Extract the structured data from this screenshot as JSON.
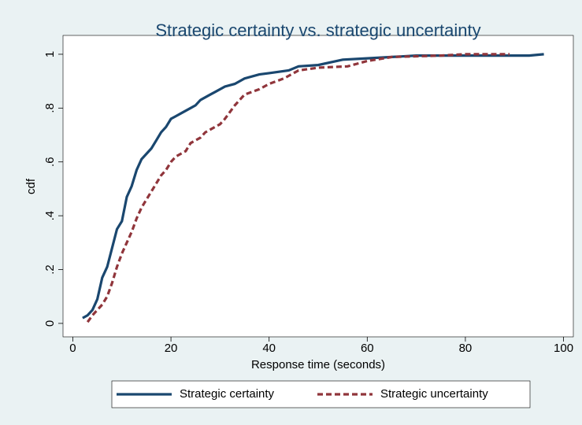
{
  "chart_data": {
    "type": "line",
    "title": "Strategic certainty vs. strategic uncertainty",
    "x_label": "Response time (seconds)",
    "y_label": "cdf",
    "xlim": [
      -2,
      102
    ],
    "ylim": [
      -0.05,
      1.07
    ],
    "xticks": [
      0,
      20,
      40,
      60,
      80,
      100
    ],
    "yticks": [
      0,
      {
        "value": 0.2,
        "label": ".2"
      },
      {
        "value": 0.4,
        "label": ".4"
      },
      {
        "value": 0.6,
        "label": ".6"
      },
      {
        "value": 0.8,
        "label": ".8"
      },
      1
    ],
    "grid": false,
    "legend": "bottom",
    "series": [
      {
        "name": "Strategic certainty",
        "color": "#1a476f",
        "dash": "solid",
        "x": [
          2,
          3,
          4,
          5,
          6,
          7,
          8,
          9,
          10,
          11,
          12,
          13,
          14,
          15,
          16,
          17,
          18,
          19,
          20,
          21,
          22,
          24,
          25,
          26,
          28,
          29,
          31,
          33,
          35,
          38,
          40,
          44,
          46,
          50,
          55,
          60,
          65,
          70,
          93,
          96
        ],
        "values": [
          0.02,
          0.03,
          0.05,
          0.09,
          0.17,
          0.21,
          0.28,
          0.35,
          0.38,
          0.47,
          0.51,
          0.57,
          0.61,
          0.63,
          0.65,
          0.68,
          0.71,
          0.73,
          0.76,
          0.77,
          0.78,
          0.8,
          0.81,
          0.83,
          0.85,
          0.86,
          0.88,
          0.89,
          0.91,
          0.925,
          0.93,
          0.94,
          0.955,
          0.96,
          0.98,
          0.985,
          0.99,
          0.995,
          0.995,
          1
        ]
      },
      {
        "name": "Strategic uncertainty",
        "color": "#90353b",
        "dash": "dashed",
        "x": [
          3,
          4,
          5,
          6,
          7,
          8,
          9,
          10,
          11,
          12,
          13,
          14,
          15,
          16,
          17,
          18,
          19,
          20,
          21,
          23,
          24,
          25,
          26,
          27,
          28,
          30,
          31,
          33,
          35,
          38,
          40,
          43,
          46,
          50,
          56,
          60,
          65,
          75,
          80,
          89
        ],
        "values": [
          0.005,
          0.03,
          0.05,
          0.07,
          0.1,
          0.15,
          0.21,
          0.26,
          0.3,
          0.34,
          0.39,
          0.43,
          0.46,
          0.49,
          0.52,
          0.55,
          0.57,
          0.6,
          0.62,
          0.64,
          0.67,
          0.68,
          0.69,
          0.71,
          0.72,
          0.74,
          0.76,
          0.81,
          0.85,
          0.87,
          0.89,
          0.91,
          0.94,
          0.95,
          0.955,
          0.975,
          0.99,
          0.995,
          1,
          1
        ]
      }
    ]
  }
}
